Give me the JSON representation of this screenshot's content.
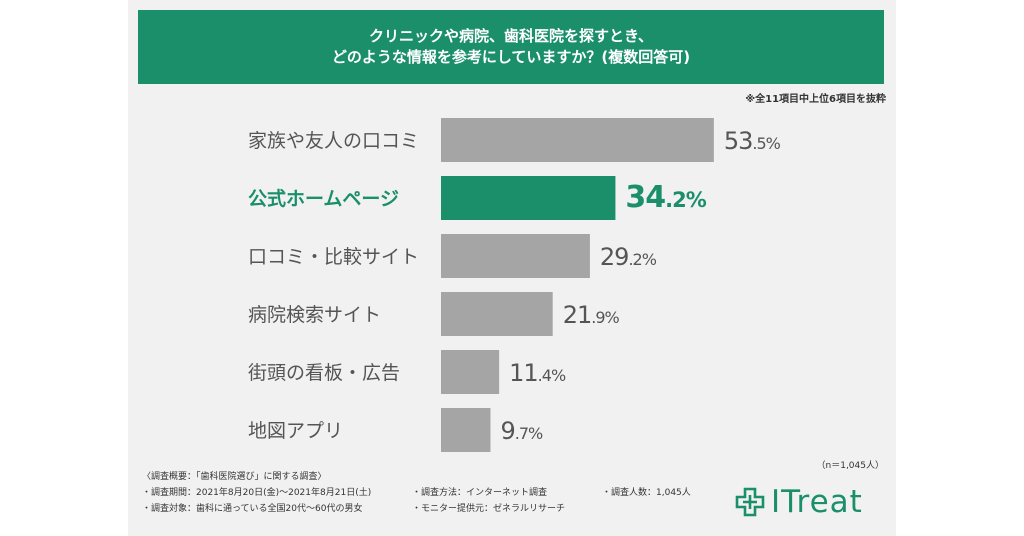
{
  "header": {
    "line1": "クリニックや病院、歯科医院を探すとき、",
    "line2": "どのような情報を参考にしていますか？(複数回答可)"
  },
  "excerpt_note": "※全11項目中上位6項目を抜粋",
  "sample_note": "（n＝1,045人）",
  "colors": {
    "highlight": "#1a8f6a",
    "bar": "#a5a5a5",
    "label": "#555555"
  },
  "chart_data": {
    "type": "bar",
    "orientation": "horizontal",
    "title": "クリニックや病院、歯科医院を探すとき、どのような情報を参考にしていますか？(複数回答可)",
    "categories": [
      "家族や友人の口コミ",
      "公式ホームページ",
      "口コミ・比較サイト",
      "病院検索サイト",
      "街頭の看板・広告",
      "地図アプリ"
    ],
    "values": [
      53.5,
      34.2,
      29.2,
      21.9,
      11.4,
      9.7
    ],
    "unit": "%",
    "highlight_index": 1,
    "xlim": [
      0,
      60
    ],
    "grid": false,
    "legend": "none"
  },
  "footer": {
    "title": "〈調査概要：「歯科医院選び」に関する調査〉",
    "period": "・調査期間：2021年8月20日(金)〜2021年8月21日(土)",
    "method": "・調査方法：インターネット調査",
    "count": "・調査人数：1,045人",
    "target": "・調査対象：歯科に通っている全国20代〜60代の男女",
    "provider": "・モニター提供元：ゼネラルリサーチ"
  },
  "logo": {
    "text": "ITreat",
    "icon": "medical-cross-icon"
  }
}
